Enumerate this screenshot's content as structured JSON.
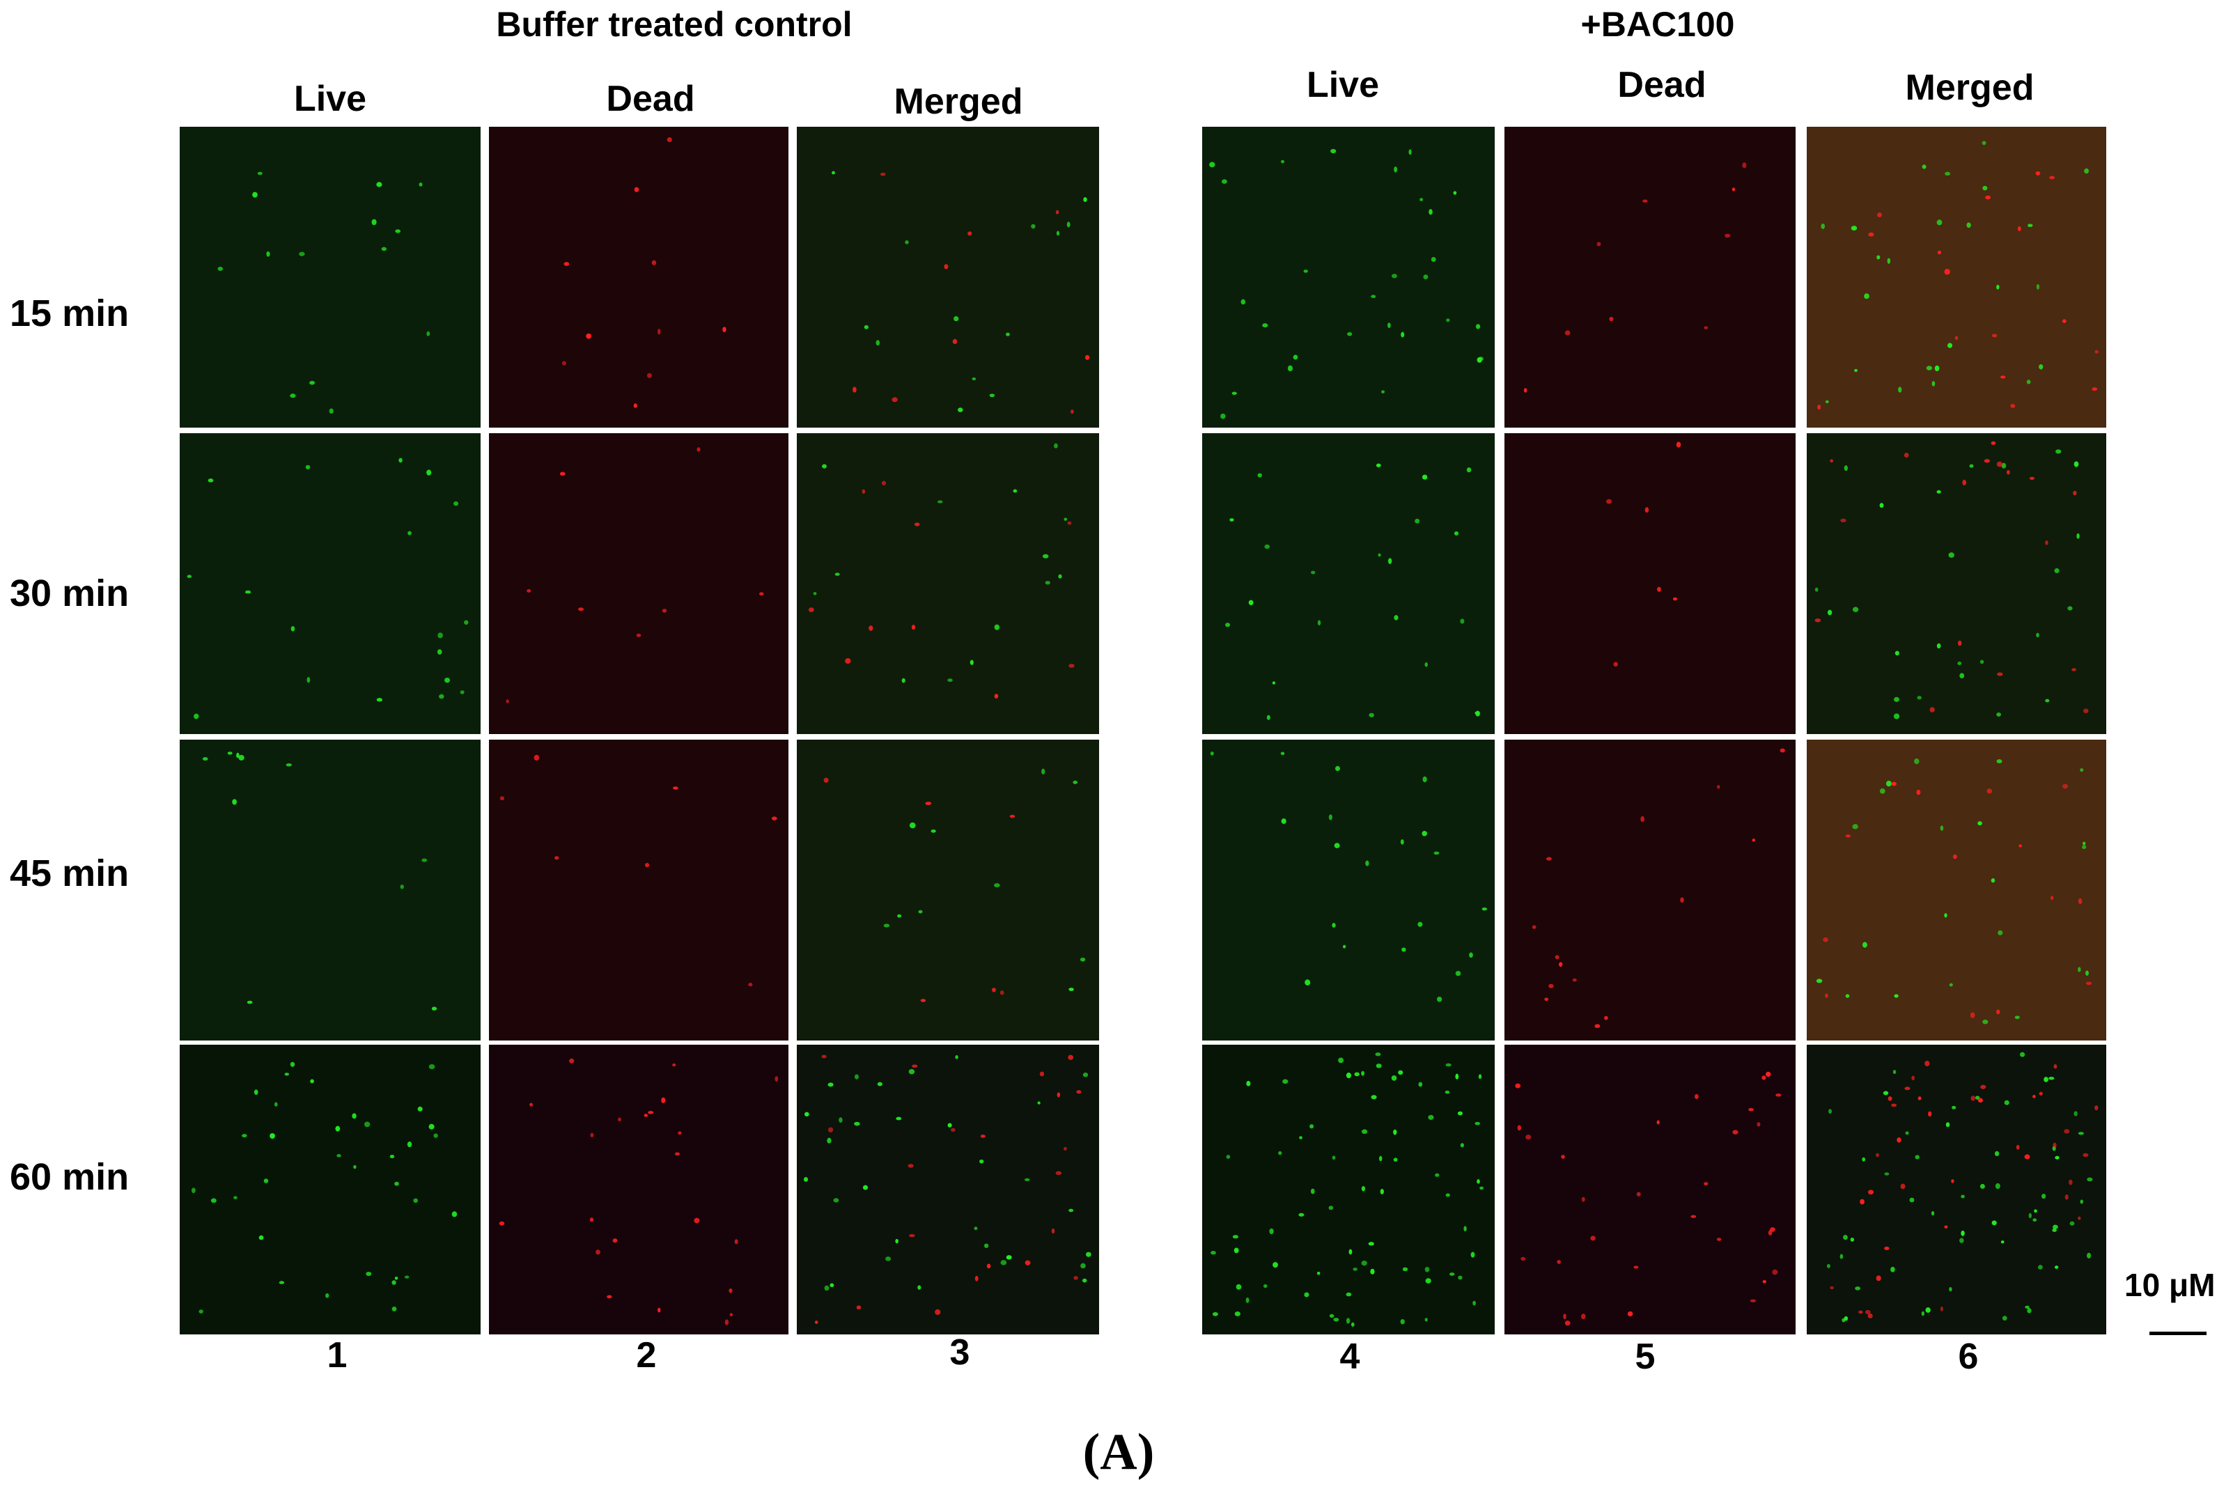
{
  "groups": [
    {
      "title": "Buffer treated control",
      "columns": [
        "Live",
        "Dead",
        "Merged"
      ],
      "numbers": [
        "1",
        "2",
        "3"
      ]
    },
    {
      "title": "+BAC100",
      "columns": [
        "Live",
        "Dead",
        "Merged"
      ],
      "numbers": [
        "4",
        "5",
        "6"
      ]
    }
  ],
  "rows": [
    "15 min",
    "30 min",
    "45 min",
    "60 min"
  ],
  "scale_bar": {
    "label": "10 μM"
  },
  "figure_label": "(A)",
  "colors": {
    "live_dot": "#22ee22",
    "dead_dot": "#ff2020",
    "live_bg": "#0a1f0a",
    "dead_bg": "#1d0508",
    "merged_bg": "#0f1c0a",
    "merged_bg_orange": "#4a2a10"
  },
  "channels": [
    "live",
    "dead",
    "merged",
    "live",
    "dead",
    "merged"
  ]
}
